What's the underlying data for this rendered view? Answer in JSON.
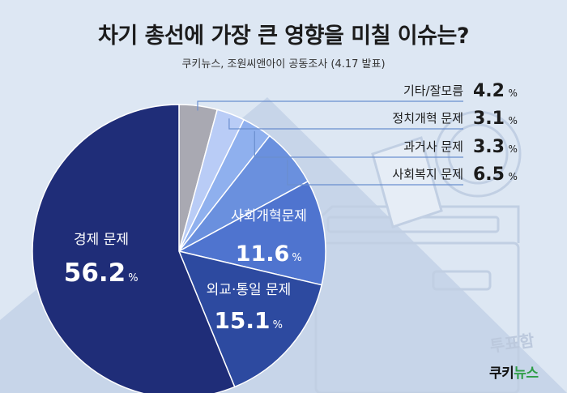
{
  "title": "차기 총선에 가장 큰 영향을 미칠 이슈는?",
  "subtitle": "쿠키뉴스, 조원씨앤아이 공동조사 (4.17 발표)",
  "background_text": {
    "ballot_box_label": "투표함"
  },
  "logo": {
    "part1": "쿠키",
    "part2": "뉴스",
    "accent_color": "#2e9e47"
  },
  "chart_data": {
    "type": "pie",
    "title": "차기 총선에 가장 큰 영향을 미칠 이슈는?",
    "subtitle": "쿠키뉴스, 조원씨앤아이 공동조사 (4.17 발표)",
    "unit": "%",
    "slices": [
      {
        "label": "기타/잘모름",
        "value": "4.2",
        "color": "#a9a9b2",
        "label_position": "outside"
      },
      {
        "label": "정치개혁 문제",
        "value": "3.1",
        "color": "#b9ccf6",
        "label_position": "outside"
      },
      {
        "label": "과거사 문제",
        "value": "3.3",
        "color": "#8fb0ee",
        "label_position": "outside"
      },
      {
        "label": "사회복지 문제",
        "value": "6.5",
        "color": "#6a90de",
        "label_position": "outside"
      },
      {
        "label": "사회개혁문제",
        "value": "11.6",
        "color": "#4f74cf",
        "label_position": "inside"
      },
      {
        "label": "외교·통일 문제",
        "value": "15.1",
        "color": "#2d4aa0",
        "label_position": "inside"
      },
      {
        "label": "경제 문제",
        "value": "56.2",
        "color": "#1f2d78",
        "label_position": "inside"
      }
    ],
    "legend": "none",
    "grid": false
  }
}
